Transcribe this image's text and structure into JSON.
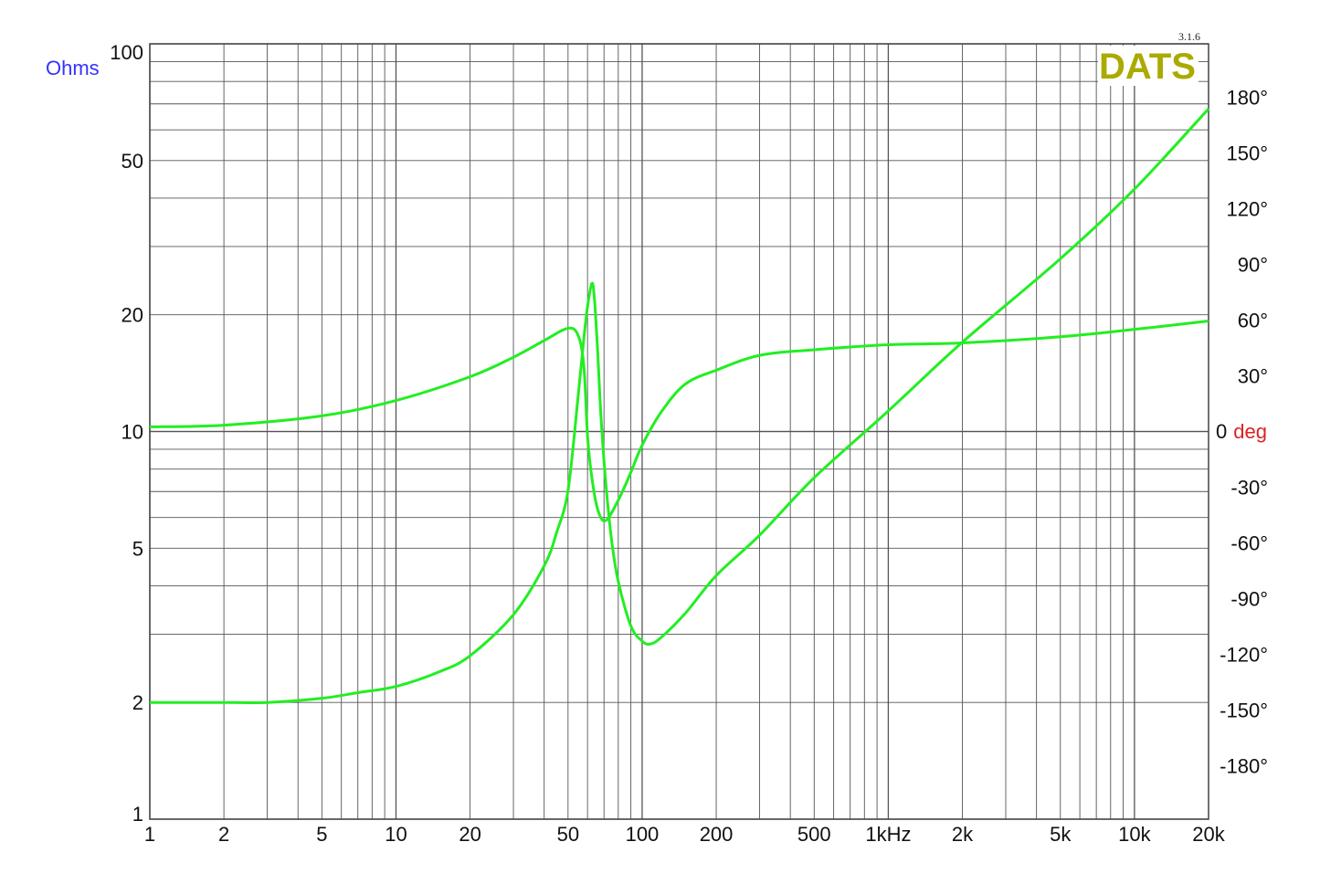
{
  "chart_data": {
    "type": "line",
    "title": "",
    "version_label": "3.1.6",
    "logo_text": "DATS",
    "xscale": "log",
    "xlim": [
      1,
      20000
    ],
    "x_tick_labels": [
      {
        "v": 1,
        "t": "1"
      },
      {
        "v": 2,
        "t": "2"
      },
      {
        "v": 5,
        "t": "5"
      },
      {
        "v": 10,
        "t": "10"
      },
      {
        "v": 20,
        "t": "20"
      },
      {
        "v": 50,
        "t": "50"
      },
      {
        "v": 100,
        "t": "100"
      },
      {
        "v": 200,
        "t": "200"
      },
      {
        "v": 500,
        "t": "500"
      },
      {
        "v": 1000,
        "t": "1kHz"
      },
      {
        "v": 2000,
        "t": "2k"
      },
      {
        "v": 5000,
        "t": "5k"
      },
      {
        "v": 10000,
        "t": "10k"
      },
      {
        "v": 20000,
        "t": "20k"
      }
    ],
    "y_left": {
      "label": "Ohms",
      "scale": "log",
      "lim": [
        1,
        100
      ],
      "ticks": [
        {
          "v": 1,
          "t": "1"
        },
        {
          "v": 2,
          "t": "2"
        },
        {
          "v": 5,
          "t": "5"
        },
        {
          "v": 10,
          "t": "10"
        },
        {
          "v": 20,
          "t": "20"
        },
        {
          "v": 50,
          "t": "50"
        },
        {
          "v": 100,
          "t": "100"
        }
      ]
    },
    "y_right": {
      "label": "deg",
      "zero_label": "0",
      "lim": [
        -180,
        180
      ],
      "ticks": [
        {
          "v": 180,
          "t": "180°"
        },
        {
          "v": 150,
          "t": "150°"
        },
        {
          "v": 120,
          "t": "120°"
        },
        {
          "v": 90,
          "t": "90°"
        },
        {
          "v": 60,
          "t": "60°"
        },
        {
          "v": 30,
          "t": "30°"
        },
        {
          "v": -30,
          "t": "-30°"
        },
        {
          "v": -60,
          "t": "-60°"
        },
        {
          "v": -90,
          "t": "-90°"
        },
        {
          "v": -120,
          "t": "-120°"
        },
        {
          "v": -150,
          "t": "-150°"
        },
        {
          "v": -180,
          "t": "-180°"
        }
      ]
    },
    "grid": true,
    "colors": {
      "curve": "#22ee22",
      "grid": "#555555",
      "ohms_label": "#3333ff",
      "deg_label": "#dd2222",
      "logo": "#aaaa00"
    },
    "series": [
      {
        "axis": "left",
        "unit": "ohms",
        "x": [
          1,
          2,
          3,
          5,
          7,
          10,
          15,
          20,
          30,
          40,
          45,
          50,
          55,
          58,
          60,
          62.5,
          64,
          66,
          68,
          71,
          75,
          80,
          90,
          100,
          108,
          120,
          150,
          200,
          300,
          500,
          1000,
          2000,
          5000,
          10000,
          20000
        ],
        "y": [
          2.0,
          2.0,
          2.0,
          2.05,
          2.12,
          2.2,
          2.4,
          2.64,
          3.37,
          4.5,
          5.5,
          7.05,
          12.4,
          17.4,
          21,
          24.1,
          22,
          16,
          11,
          7.5,
          5.3,
          4.1,
          3.15,
          2.88,
          2.83,
          2.95,
          3.4,
          4.25,
          5.4,
          7.6,
          11.3,
          17,
          27.9,
          42.2,
          68
        ]
      },
      {
        "axis": "right",
        "unit": "deg",
        "x": [
          1,
          2,
          5,
          10,
          20,
          30,
          40,
          50,
          55,
          58,
          60,
          62.5,
          66,
          71,
          80,
          90,
          100,
          120,
          150,
          200,
          300,
          500,
          1000,
          2000,
          5000,
          10000,
          20000
        ],
        "y": [
          2.5,
          3.4,
          8.4,
          16.7,
          29.5,
          40,
          49,
          55.6,
          51.6,
          35,
          -2.5,
          -25,
          -42,
          -48,
          -37,
          -22,
          -7.4,
          10.8,
          25.6,
          33,
          41,
          44,
          46.7,
          47.7,
          51,
          55,
          59.5
        ]
      }
    ]
  }
}
